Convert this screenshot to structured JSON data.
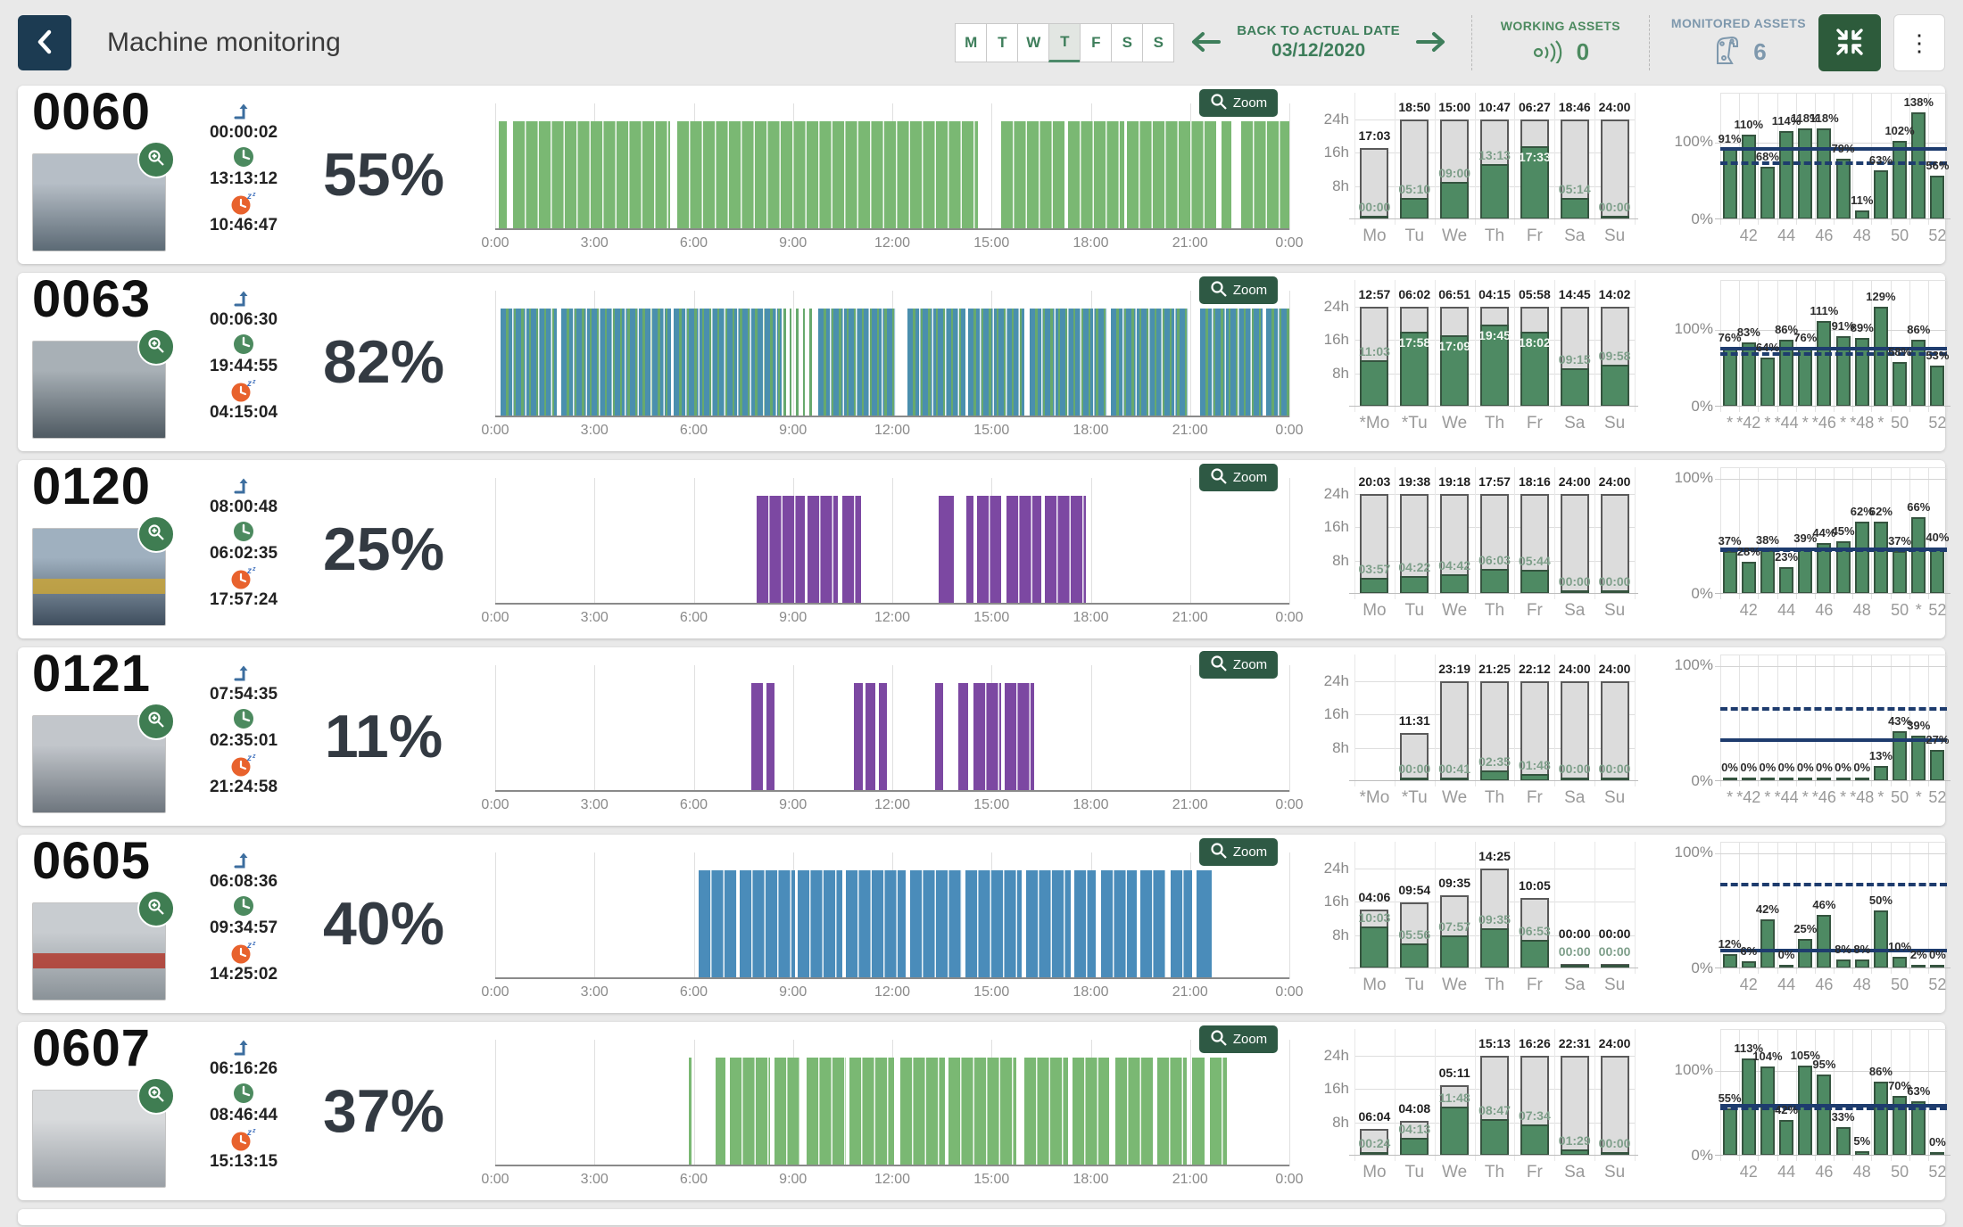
{
  "header": {
    "title": "Machine monitoring",
    "days": [
      "M",
      "T",
      "W",
      "T",
      "F",
      "S",
      "S"
    ],
    "selected_day_index": 3,
    "back_to_actual_label": "BACK TO ACTUAL DATE",
    "actual_date": "03/12/2020",
    "working_assets": {
      "label": "WORKING ASSETS",
      "count": "0"
    },
    "monitored_assets": {
      "label": "MONITORED ASSETS",
      "count": "6"
    },
    "accent_green": "#3e7e5b",
    "navy": "#1c3b52",
    "button_green": "#2d5b3b"
  },
  "zoom_button_label": "Zoom",
  "timeline_axis": [
    "0:00",
    "3:00",
    "6:00",
    "9:00",
    "12:00",
    "15:00",
    "18:00",
    "21:00",
    "0:00"
  ],
  "day_axis_y": [
    {
      "label": "24h",
      "hours": 24
    },
    {
      "label": "16h",
      "hours": 16
    },
    {
      "label": "8h",
      "hours": 8
    }
  ],
  "week_axis_y": {
    "top": "100%",
    "bottom": "0%"
  },
  "colors": {
    "day_gray": "#dcdcdc",
    "bar_green": "#4e8a63",
    "threshold_navy": "#1e3c6e"
  },
  "machines": [
    {
      "id": "0060",
      "start_time": "00:00:02",
      "working_time": "13:13:12",
      "idle_time": "10:46:47",
      "percent": "55%",
      "photo": {
        "c1": "#b6bec6",
        "c2": "#5c6a75",
        "accent": ""
      },
      "timeline": {
        "color": "#7ab873",
        "mix": false,
        "segments": [
          [
            0.12,
            0.35
          ],
          [
            0.55,
            5.28
          ],
          [
            5.5,
            14.58
          ],
          [
            15.3,
            17.2
          ],
          [
            17.3,
            19.0
          ],
          [
            19.1,
            21.78
          ],
          [
            21.95,
            22.25
          ],
          [
            22.55,
            24
          ]
        ]
      },
      "daily": {
        "days": [
          "Mo",
          "Tu",
          "We",
          "Th",
          "Fr",
          "Sa",
          "Su"
        ],
        "bars": [
          [
            "17:03",
            "00:00"
          ],
          [
            "18:50",
            "05:10"
          ],
          [
            "15:00",
            "09:00"
          ],
          [
            "10:47",
            "13:13"
          ],
          [
            "06:27",
            "17:33"
          ],
          [
            "18:46",
            "05:14"
          ],
          [
            "24:00",
            "00:00"
          ]
        ]
      },
      "weekly": {
        "ylim": 150,
        "values": [
          91,
          110,
          68,
          114,
          118,
          118,
          79,
          11,
          63,
          102,
          138,
          56
        ],
        "ticks": [
          "",
          "42",
          "",
          "44",
          "",
          "46",
          "",
          "48",
          "",
          "50",
          "",
          "52"
        ],
        "solid": 95,
        "dashed": 76
      }
    },
    {
      "id": "0063",
      "start_time": "00:06:30",
      "working_time": "19:44:55",
      "idle_time": "04:15:04",
      "percent": "82%",
      "photo": {
        "c1": "#a8b0b6",
        "c2": "#4f5a62",
        "accent": ""
      },
      "timeline": {
        "color": "#4a8fae",
        "mix": true,
        "segments": [
          [
            0.15,
            1.85
          ],
          [
            2.0,
            5.3
          ],
          [
            5.4,
            8.65
          ],
          [
            8.72,
            8.78,
            "g"
          ],
          [
            8.9,
            8.96,
            "g"
          ],
          [
            9.1,
            9.16,
            "g"
          ],
          [
            9.3,
            9.36,
            "g"
          ],
          [
            9.5,
            9.56,
            "g"
          ],
          [
            9.75,
            12.1
          ],
          [
            12.45,
            14.2
          ],
          [
            14.3,
            16.0
          ],
          [
            16.15,
            18.5
          ],
          [
            18.62,
            20.95
          ],
          [
            21.3,
            23.2
          ],
          [
            23.3,
            24
          ]
        ]
      },
      "daily": {
        "days": [
          "*Mo",
          "*Tu",
          "We",
          "Th",
          "Fr",
          "Sa",
          "Su"
        ],
        "bars": [
          [
            "12:57",
            "11:03"
          ],
          [
            "06:02",
            "17:58"
          ],
          [
            "06:51",
            "17:09"
          ],
          [
            "04:15",
            "19:45"
          ],
          [
            "05:58",
            "18:02"
          ],
          [
            "14:45",
            "09:15"
          ],
          [
            "14:02",
            "09:58"
          ]
        ]
      },
      "weekly": {
        "ylim": 150,
        "values": [
          76,
          83,
          64,
          86,
          76,
          111,
          91,
          89,
          129,
          58,
          86,
          53
        ],
        "ticks": [
          "*",
          "*42",
          "*",
          "*44",
          "*",
          "*46",
          "*",
          "*48",
          "*",
          "50",
          "",
          "52"
        ],
        "solid": 79,
        "dashed": 71
      }
    },
    {
      "id": "0120",
      "start_time": "08:00:48",
      "working_time": "06:02:35",
      "idle_time": "17:57:24",
      "percent": "25%",
      "photo": {
        "c1": "#9fb0bf",
        "c2": "#3f4e5e",
        "accent": "#c9a43a"
      },
      "timeline": {
        "color": "#7c48a2",
        "mix": false,
        "segments": [
          [
            7.9,
            9.35
          ],
          [
            9.45,
            10.35
          ],
          [
            10.5,
            11.05
          ],
          [
            13.4,
            13.85
          ],
          [
            14.25,
            14.45
          ],
          [
            14.55,
            15.3
          ],
          [
            15.45,
            16.5
          ],
          [
            16.6,
            17.85
          ]
        ]
      },
      "daily": {
        "days": [
          "Mo",
          "Tu",
          "We",
          "Th",
          "Fr",
          "Sa",
          "Su"
        ],
        "bars": [
          [
            "20:03",
            "03:57"
          ],
          [
            "19:38",
            "04:22"
          ],
          [
            "19:18",
            "04:42"
          ],
          [
            "17:57",
            "06:03"
          ],
          [
            "18:16",
            "05:44"
          ],
          [
            "24:00",
            "00:00"
          ],
          [
            "24:00",
            "00:00"
          ]
        ]
      },
      "weekly": {
        "ylim": 100,
        "values": [
          37,
          28,
          38,
          23,
          39,
          44,
          45,
          62,
          62,
          37,
          66,
          40
        ],
        "ticks": [
          "",
          "42",
          "",
          "44",
          "",
          "46",
          "",
          "48",
          "",
          "50",
          "*",
          "52"
        ],
        "solid": 41,
        "dashed": 40
      }
    },
    {
      "id": "0121",
      "start_time": "07:54:35",
      "working_time": "02:35:01",
      "idle_time": "21:24:58",
      "percent": "11%",
      "photo": {
        "c1": "#c2c6cb",
        "c2": "#6e767e",
        "accent": ""
      },
      "timeline": {
        "color": "#7c48a2",
        "mix": false,
        "segments": [
          [
            7.75,
            8.1
          ],
          [
            8.2,
            8.45
          ],
          [
            10.85,
            11.1
          ],
          [
            11.2,
            11.5
          ],
          [
            11.6,
            11.85
          ],
          [
            13.3,
            13.55
          ],
          [
            14.0,
            14.3
          ],
          [
            14.45,
            15.3
          ],
          [
            15.4,
            16.3
          ]
        ]
      },
      "daily": {
        "days": [
          "*Mo",
          "*Tu",
          "We",
          "Th",
          "Fr",
          "Sa",
          "Su"
        ],
        "bars": [
          null,
          [
            "11:31",
            "00:00"
          ],
          [
            "23:19",
            "00:41"
          ],
          [
            "21:25",
            "02:35"
          ],
          [
            "22:12",
            "01:48"
          ],
          [
            "24:00",
            "00:00"
          ],
          [
            "24:00",
            "00:00"
          ]
        ]
      },
      "weekly": {
        "ylim": 100,
        "values": [
          0,
          0,
          0,
          0,
          0,
          0,
          0,
          0,
          13,
          43,
          39,
          27
        ],
        "ticks": [
          "*",
          "*42",
          "*",
          "*44",
          "*",
          "*46",
          "*",
          "*48",
          "*",
          "50",
          "*",
          "52"
        ],
        "solid": 38,
        "dashed": 65
      }
    },
    {
      "id": "0605",
      "start_time": "06:08:36",
      "working_time": "09:34:57",
      "idle_time": "14:25:02",
      "percent": "40%",
      "photo": {
        "c1": "#c8ccd0",
        "c2": "#8a9298",
        "accent": "#b23a2e"
      },
      "timeline": {
        "color": "#4a8cba",
        "mix": false,
        "segments": [
          [
            6.15,
            7.3
          ],
          [
            7.4,
            9.05
          ],
          [
            9.15,
            10.5
          ],
          [
            10.6,
            12.4
          ],
          [
            12.55,
            14.1
          ],
          [
            14.2,
            15.9
          ],
          [
            16.05,
            17.4
          ],
          [
            17.5,
            18.15
          ],
          [
            18.3,
            19.4
          ],
          [
            19.5,
            20.25
          ],
          [
            20.4,
            21.05
          ],
          [
            21.2,
            21.65
          ]
        ]
      },
      "daily": {
        "days": [
          "Mo",
          "Tu",
          "We",
          "Th",
          "Fr",
          "Sa",
          "Su"
        ],
        "bars": [
          [
            "04:06",
            "10:03"
          ],
          [
            "09:54",
            "05:56"
          ],
          [
            "09:35",
            "07:57"
          ],
          [
            "14:25",
            "09:35"
          ],
          [
            "10:05",
            "06:53"
          ],
          [
            "00:00",
            "00:00"
          ],
          [
            "00:00",
            "00:00"
          ]
        ]
      },
      "weekly": {
        "ylim": 100,
        "values": [
          12,
          6,
          42,
          0,
          25,
          46,
          8,
          8,
          50,
          10,
          2,
          0
        ],
        "ticks": [
          "",
          "42",
          "",
          "44",
          "",
          "46",
          "",
          "48",
          "",
          "50",
          "",
          "52"
        ],
        "solid": 18,
        "dashed": 75
      }
    },
    {
      "id": "0607",
      "start_time": "06:16:26",
      "working_time": "08:46:44",
      "idle_time": "15:13:15",
      "percent": "37%",
      "photo": {
        "c1": "#d8dadc",
        "c2": "#9aa0a6",
        "accent": ""
      },
      "timeline": {
        "color": "#7ab873",
        "mix": false,
        "segments": [
          [
            5.85,
            5.92
          ],
          [
            6.65,
            6.95
          ],
          [
            7.1,
            8.3
          ],
          [
            8.45,
            9.2
          ],
          [
            9.4,
            10.6
          ],
          [
            10.7,
            12.05
          ],
          [
            12.25,
            13.6
          ],
          [
            13.7,
            15.75
          ],
          [
            16.0,
            17.3
          ],
          [
            17.45,
            18.55
          ],
          [
            18.75,
            19.9
          ],
          [
            20.0,
            20.9
          ],
          [
            21.05,
            21.45
          ],
          [
            21.6,
            22.1
          ]
        ]
      },
      "daily": {
        "days": [
          "Mo",
          "Tu",
          "We",
          "Th",
          "Fr",
          "Sa",
          "Su"
        ],
        "bars": [
          [
            "06:04",
            "00:24"
          ],
          [
            "04:08",
            "04:13"
          ],
          [
            "05:11",
            "11:48"
          ],
          [
            "15:13",
            "08:47"
          ],
          [
            "16:26",
            "07:34"
          ],
          [
            "22:31",
            "01:29"
          ],
          [
            "24:00",
            "00:00"
          ]
        ]
      },
      "weekly": {
        "ylim": 135,
        "values": [
          55,
          113,
          104,
          42,
          105,
          95,
          33,
          5,
          86,
          70,
          63,
          0
        ],
        "ticks": [
          "",
          "42",
          "",
          "44",
          "",
          "46",
          "",
          "48",
          "",
          "50",
          "",
          "52"
        ],
        "solid": 61,
        "dashed": 58
      }
    }
  ]
}
